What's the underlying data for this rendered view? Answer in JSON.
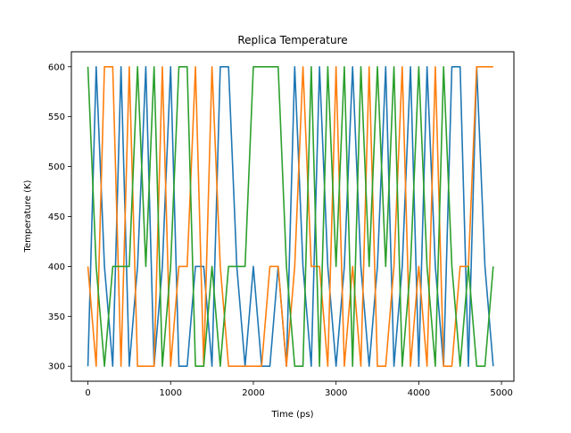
{
  "chart_data": {
    "type": "line",
    "title": "Replica Temperature",
    "xlabel": "Time (ps)",
    "ylabel": "Temperature (K)",
    "xlim": [
      -200,
      5150
    ],
    "ylim": [
      285,
      615
    ],
    "xticks": [
      0,
      1000,
      2000,
      3000,
      4000,
      5000
    ],
    "yticks": [
      300,
      350,
      400,
      450,
      500,
      550,
      600
    ],
    "grid": false,
    "legend": "none",
    "series": [
      {
        "color": "#1f77b4",
        "x": [
          0,
          100,
          200,
          300,
          400,
          500,
          600,
          700,
          800,
          900,
          1000,
          1100,
          1200,
          1300,
          1400,
          1500,
          1600,
          1700,
          1800,
          1900,
          2000,
          2100,
          2200,
          2300,
          2400,
          2500,
          2600,
          2700,
          2800,
          2900,
          3000,
          3100,
          3200,
          3300,
          3400,
          3500,
          3600,
          3700,
          3800,
          3900,
          4000,
          4100,
          4200,
          4300,
          4400,
          4500,
          4600,
          4700,
          4800,
          4900
        ],
        "y": [
          300,
          600,
          400,
          300,
          600,
          300,
          400,
          600,
          300,
          400,
          600,
          300,
          300,
          400,
          400,
          300,
          600,
          600,
          400,
          300,
          400,
          300,
          300,
          400,
          300,
          600,
          400,
          300,
          600,
          400,
          300,
          400,
          600,
          400,
          300,
          400,
          600,
          300,
          400,
          600,
          300,
          600,
          400,
          300,
          600,
          600,
          300,
          600,
          400,
          300
        ]
      },
      {
        "color": "#ff7f0e",
        "x": [
          0,
          100,
          200,
          300,
          400,
          500,
          600,
          700,
          800,
          900,
          1000,
          1100,
          1200,
          1300,
          1400,
          1500,
          1600,
          1700,
          1800,
          1900,
          2000,
          2100,
          2200,
          2300,
          2400,
          2500,
          2600,
          2700,
          2800,
          2900,
          3000,
          3100,
          3200,
          3300,
          3400,
          3500,
          3600,
          3700,
          3800,
          3900,
          4000,
          4100,
          4200,
          4300,
          4400,
          4500,
          4600,
          4700,
          4800,
          4900
        ],
        "y": [
          400,
          300,
          600,
          600,
          300,
          600,
          300,
          300,
          300,
          600,
          300,
          400,
          400,
          600,
          300,
          600,
          400,
          300,
          300,
          300,
          300,
          300,
          400,
          400,
          300,
          400,
          600,
          400,
          400,
          300,
          600,
          300,
          400,
          300,
          600,
          300,
          300,
          400,
          600,
          300,
          400,
          300,
          600,
          300,
          300,
          400,
          400,
          600,
          600,
          600
        ]
      },
      {
        "color": "#2ca02c",
        "x": [
          0,
          100,
          200,
          300,
          400,
          500,
          600,
          700,
          800,
          900,
          1000,
          1100,
          1200,
          1300,
          1400,
          1500,
          1600,
          1700,
          1800,
          1900,
          2000,
          2100,
          2200,
          2300,
          2400,
          2500,
          2600,
          2700,
          2800,
          2900,
          3000,
          3100,
          3200,
          3300,
          3400,
          3500,
          3600,
          3700,
          3800,
          3900,
          4000,
          4100,
          4200,
          4300,
          4400,
          4500,
          4600,
          4700,
          4800,
          4900
        ],
        "y": [
          600,
          400,
          300,
          400,
          400,
          400,
          600,
          400,
          600,
          300,
          400,
          600,
          600,
          300,
          300,
          400,
          300,
          400,
          400,
          400,
          600,
          600,
          600,
          600,
          400,
          300,
          300,
          600,
          300,
          600,
          400,
          600,
          300,
          600,
          400,
          600,
          400,
          600,
          300,
          400,
          600,
          400,
          300,
          600,
          400,
          300,
          400,
          300,
          300,
          400
        ]
      }
    ]
  }
}
